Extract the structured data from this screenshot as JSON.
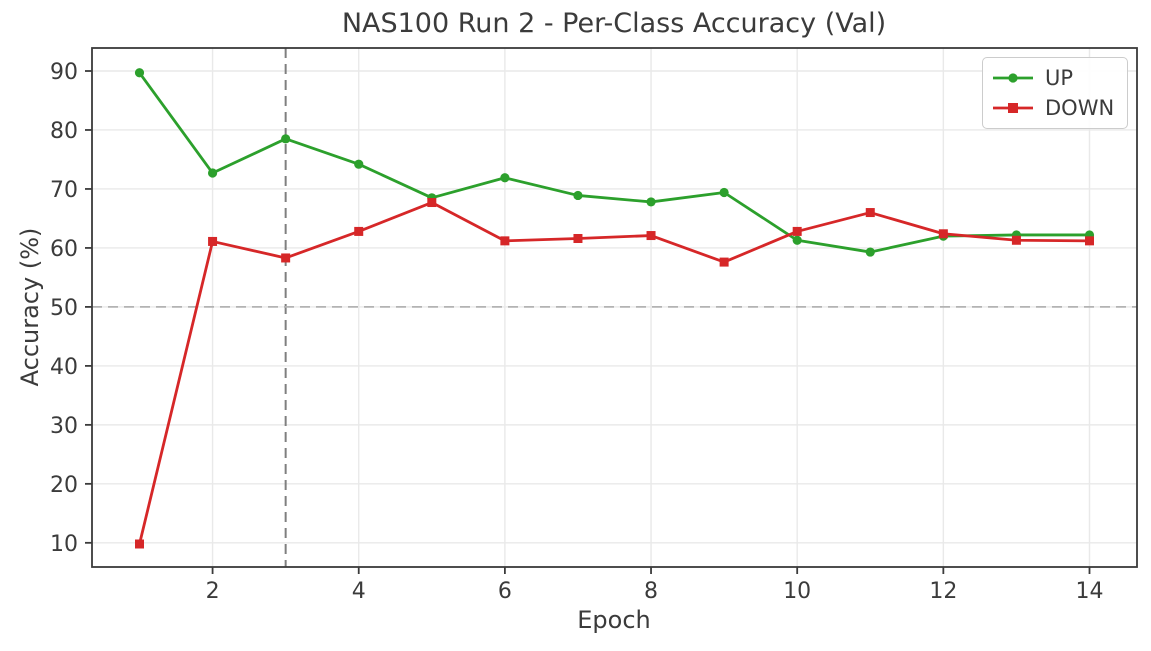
{
  "chart_data": {
    "type": "line",
    "title": "NAS100 Run 2 - Per-Class Accuracy (Val)",
    "xlabel": "Epoch",
    "ylabel": "Accuracy (%)",
    "x": [
      1,
      2,
      3,
      4,
      5,
      6,
      7,
      8,
      9,
      10,
      11,
      12,
      13,
      14
    ],
    "series": [
      {
        "name": "UP",
        "color": "#2ca02c",
        "marker": "circle",
        "values": [
          89.7,
          72.7,
          78.5,
          74.2,
          68.5,
          71.9,
          68.9,
          67.8,
          69.4,
          61.3,
          59.3,
          62.0,
          62.2,
          62.2
        ]
      },
      {
        "name": "DOWN",
        "color": "#d62728",
        "marker": "square",
        "values": [
          9.8,
          61.1,
          58.3,
          62.8,
          67.7,
          61.2,
          61.6,
          62.1,
          57.6,
          62.8,
          66.0,
          62.4,
          61.3,
          61.2
        ]
      }
    ],
    "x_ticks": [
      2,
      4,
      6,
      8,
      10,
      12,
      14
    ],
    "y_ticks": [
      10,
      20,
      30,
      40,
      50,
      60,
      70,
      80,
      90
    ],
    "xlim": [
      0.35,
      14.65
    ],
    "ylim": [
      5.9,
      93.9
    ],
    "grid": true,
    "legend_position": "upper right",
    "annotations": [
      {
        "type": "vline",
        "x": 3,
        "style": "dashed",
        "color": "#7f7f7f"
      },
      {
        "type": "hline",
        "y": 50,
        "style": "dashed",
        "color": "#b3b3b3"
      }
    ]
  },
  "style": {
    "grid_color": "#e9e9e9",
    "spine_color": "#3b3b3b",
    "text_color": "#3b3b3b",
    "background": "#ffffff",
    "legend_border": "#cccccc"
  }
}
